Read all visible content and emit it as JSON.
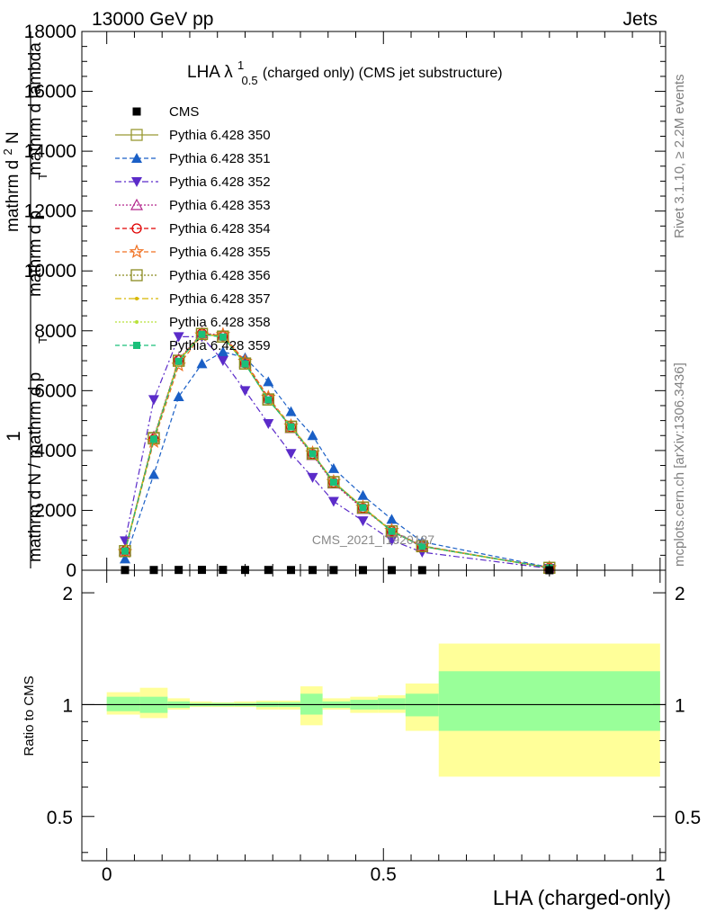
{
  "header": {
    "energy": "13000 GeV pp",
    "process": "Jets"
  },
  "side_labels": {
    "rivet": "Rivet 3.1.10, ≥ 2.2M events",
    "mcplots": "mcplots.cern.ch [arXiv:1306.3436]"
  },
  "watermark": "CMS_2021_I1920187",
  "colors": {
    "cms": "#000000",
    "py350": "#999933",
    "py351": "#1a5fc6",
    "py352": "#5b2bc9",
    "py353": "#b3268c",
    "py354": "#e00000",
    "py355": "#f07020",
    "py356": "#8a8a1f",
    "py357": "#d8b800",
    "py358": "#b8e23a",
    "py359": "#1ac07a",
    "band_inner": "#99ff99",
    "band_outer": "#ffff99"
  },
  "chart_data": [
    {
      "type": "line",
      "panel": "main",
      "title_parts": {
        "main": "LHA λ",
        "sup": "1",
        "sub": "0.5",
        "rest": " (charged only) (CMS jet substructure)"
      },
      "ylabel_lines": [
        "1",
        "mathrm d N / mathrm d p",
        "T",
        "mathrm d N",
        "mathrm d p",
        "T",
        "mathrm d lambda"
      ],
      "ylabel": {
        "one": "1",
        "sub_T": "T",
        "denominator": "mathrm d N / mathrm d p",
        "dN": "mathrm d",
        "N_sup": "2",
        "N": "N",
        "mid": "mathrm d p",
        "lambda": " mathrm d lambda"
      },
      "ylim": [
        0,
        18000
      ],
      "yticks": [
        0,
        2000,
        4000,
        6000,
        8000,
        10000,
        12000,
        14000,
        16000,
        18000
      ],
      "xlim": [
        -0.045,
        1.01
      ],
      "x": [
        0.033,
        0.085,
        0.13,
        0.172,
        0.21,
        0.25,
        0.292,
        0.333,
        0.372,
        0.41,
        0.463,
        0.515,
        0.57,
        0.8
      ],
      "legend_position": "top-left",
      "series": [
        {
          "name": "CMS",
          "style": "data",
          "color": "#000000",
          "values": [
            6,
            8,
            10,
            12,
            12,
            10,
            9,
            8,
            7,
            6,
            5,
            4,
            3,
            1
          ]
        },
        {
          "name": "Pythia 6.428 350",
          "style": "solid",
          "marker": "open-square",
          "color": "#999933",
          "values": [
            640,
            4400,
            7000,
            7900,
            7800,
            6900,
            5700,
            4800,
            3900,
            2950,
            2100,
            1300,
            800,
            80
          ]
        },
        {
          "name": "Pythia 6.428 351",
          "style": "dashed",
          "marker": "triangle-up",
          "color": "#1a5fc6",
          "values": [
            380,
            3200,
            5800,
            6900,
            7300,
            7100,
            6300,
            5300,
            4500,
            3400,
            2500,
            1700,
            950,
            100
          ]
        },
        {
          "name": "Pythia 6.428 352",
          "style": "dashdot",
          "marker": "triangle-down",
          "color": "#5b2bc9",
          "values": [
            980,
            5700,
            7800,
            7800,
            7000,
            6000,
            4900,
            3900,
            3100,
            2300,
            1650,
            1000,
            600,
            60
          ]
        },
        {
          "name": "Pythia 6.428 353",
          "style": "dotted",
          "marker": "open-triangle",
          "color": "#b3268c",
          "values": [
            660,
            4450,
            7050,
            7920,
            7850,
            6950,
            5750,
            4750,
            3850,
            2900,
            2050,
            1320,
            810,
            80
          ]
        },
        {
          "name": "Pythia 6.428 354",
          "style": "dashed",
          "marker": "open-circle",
          "color": "#e00000",
          "values": [
            650,
            4380,
            7020,
            7910,
            7820,
            6920,
            5720,
            4780,
            3880,
            2930,
            2080,
            1310,
            800,
            80
          ]
        },
        {
          "name": "Pythia 6.428 355",
          "style": "dashed",
          "marker": "open-star",
          "color": "#f07020",
          "values": [
            620,
            4300,
            6850,
            7860,
            7870,
            6980,
            5780,
            4820,
            3920,
            2960,
            2110,
            1330,
            820,
            80
          ]
        },
        {
          "name": "Pythia 6.428 356",
          "style": "dotted",
          "marker": "open-square",
          "color": "#8a8a1f",
          "values": [
            640,
            4420,
            7000,
            7890,
            7810,
            6910,
            5710,
            4790,
            3890,
            2940,
            2090,
            1300,
            800,
            80
          ]
        },
        {
          "name": "Pythia 6.428 357",
          "style": "dashdot",
          "marker": "small-dot",
          "color": "#d8b800",
          "values": [
            645,
            4410,
            7010,
            7900,
            7800,
            6900,
            5700,
            4800,
            3900,
            2950,
            2100,
            1300,
            800,
            80
          ]
        },
        {
          "name": "Pythia 6.428 358",
          "style": "dotted",
          "marker": "small-dot",
          "color": "#b8e23a",
          "values": [
            650,
            4400,
            7000,
            7900,
            7800,
            6900,
            5700,
            4800,
            3900,
            2950,
            2100,
            1300,
            800,
            80
          ]
        },
        {
          "name": "Pythia 6.428 359",
          "style": "dashed",
          "marker": "filled-square",
          "color": "#1ac07a",
          "values": [
            640,
            4380,
            6980,
            7880,
            7790,
            6890,
            5690,
            4790,
            3890,
            2940,
            2090,
            1300,
            800,
            80
          ]
        }
      ]
    },
    {
      "type": "area",
      "panel": "ratio",
      "ylabel": "Ratio to CMS",
      "xlabel": "LHA (charged-only)",
      "xlim": [
        -0.045,
        1.01
      ],
      "xticks": [
        0,
        0.5,
        1
      ],
      "xtick_labels": [
        "0",
        "0.5",
        "1"
      ],
      "ylim": [
        0.38,
        2.3
      ],
      "yticks": [
        0.5,
        1,
        2
      ],
      "ytick_labels": [
        "0.5",
        "1",
        "2"
      ],
      "bins": [
        {
          "x0": 0.0,
          "x1": 0.06,
          "inner": [
            0.96,
            1.05
          ],
          "outer": [
            0.94,
            1.08
          ]
        },
        {
          "x0": 0.06,
          "x1": 0.11,
          "inner": [
            0.95,
            1.05
          ],
          "outer": [
            0.92,
            1.11
          ]
        },
        {
          "x0": 0.11,
          "x1": 0.15,
          "inner": [
            0.98,
            1.02
          ],
          "outer": [
            0.97,
            1.04
          ]
        },
        {
          "x0": 0.15,
          "x1": 0.19,
          "inner": [
            0.99,
            1.01
          ],
          "outer": [
            0.985,
            1.02
          ]
        },
        {
          "x0": 0.19,
          "x1": 0.23,
          "inner": [
            0.99,
            1.01
          ],
          "outer": [
            0.985,
            1.015
          ]
        },
        {
          "x0": 0.23,
          "x1": 0.27,
          "inner": [
            0.99,
            1.01
          ],
          "outer": [
            0.985,
            1.02
          ]
        },
        {
          "x0": 0.27,
          "x1": 0.31,
          "inner": [
            0.985,
            1.015
          ],
          "outer": [
            0.97,
            1.025
          ]
        },
        {
          "x0": 0.31,
          "x1": 0.35,
          "inner": [
            0.985,
            1.015
          ],
          "outer": [
            0.97,
            1.025
          ]
        },
        {
          "x0": 0.35,
          "x1": 0.39,
          "inner": [
            0.94,
            1.07
          ],
          "outer": [
            0.88,
            1.12
          ]
        },
        {
          "x0": 0.39,
          "x1": 0.44,
          "inner": [
            0.98,
            1.02
          ],
          "outer": [
            0.97,
            1.04
          ]
        },
        {
          "x0": 0.44,
          "x1": 0.49,
          "inner": [
            0.97,
            1.03
          ],
          "outer": [
            0.95,
            1.05
          ]
        },
        {
          "x0": 0.49,
          "x1": 0.54,
          "inner": [
            0.97,
            1.04
          ],
          "outer": [
            0.95,
            1.06
          ]
        },
        {
          "x0": 0.54,
          "x1": 0.6,
          "inner": [
            0.93,
            1.07
          ],
          "outer": [
            0.85,
            1.14
          ]
        },
        {
          "x0": 0.6,
          "x1": 1.0,
          "inner": [
            0.85,
            1.23
          ],
          "outer": [
            0.64,
            1.46
          ]
        }
      ],
      "reference_line": 1
    }
  ]
}
